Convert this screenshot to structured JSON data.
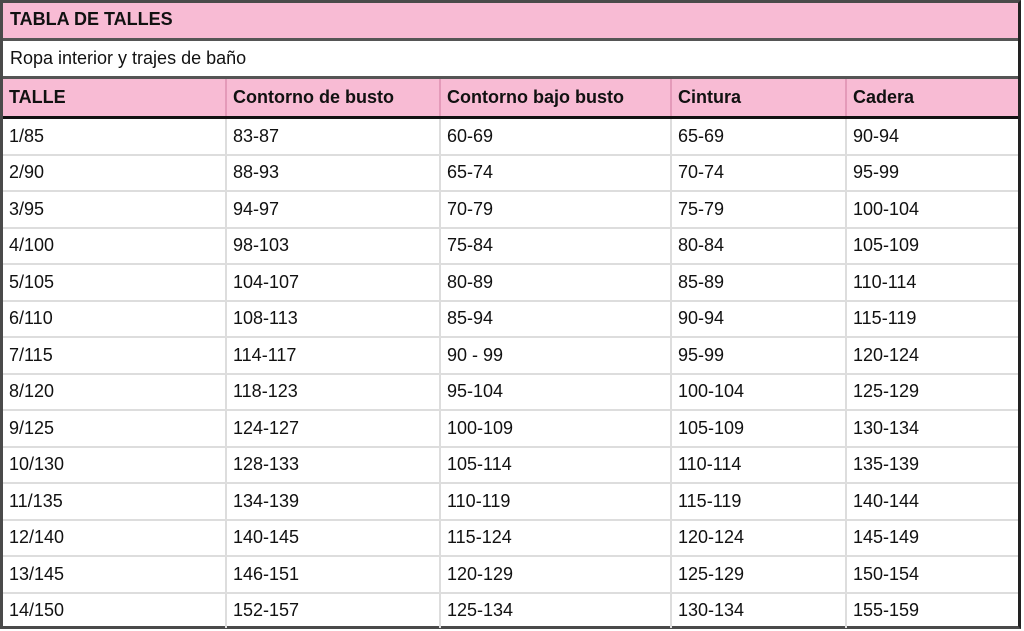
{
  "title": "TABLA DE TALLES",
  "subtitle": "Ropa interior y trajes de baño",
  "colors": {
    "header_bg": "#f8bbd4"
  },
  "headers": [
    "TALLE",
    "Contorno de busto",
    "Contorno bajo busto",
    "Cintura",
    "Cadera"
  ],
  "rows": [
    [
      "1/85",
      "83-87",
      "60-69",
      "65-69",
      "90-94"
    ],
    [
      "2/90",
      "88-93",
      "65-74",
      "70-74",
      "95-99"
    ],
    [
      "3/95",
      "94-97",
      "70-79",
      "75-79",
      "100-104"
    ],
    [
      "4/100",
      "98-103",
      "75-84",
      "80-84",
      "105-109"
    ],
    [
      "5/105",
      "104-107",
      "80-89",
      "85-89",
      "110-114"
    ],
    [
      "6/110",
      "108-113",
      "85-94",
      "90-94",
      "115-119"
    ],
    [
      "7/115",
      "114-117",
      "90 - 99",
      "95-99",
      "120-124"
    ],
    [
      "8/120",
      "118-123",
      "95-104",
      "100-104",
      "125-129"
    ],
    [
      "9/125",
      "124-127",
      "100-109",
      "105-109",
      "130-134"
    ],
    [
      "10/130",
      "128-133",
      "105-114",
      "110-114",
      "135-139"
    ],
    [
      "11/135",
      "134-139",
      "110-119",
      "115-119",
      "140-144"
    ],
    [
      "12/140",
      "140-145",
      "115-124",
      "120-124",
      "145-149"
    ],
    [
      "13/145",
      "146-151",
      "120-129",
      "125-129",
      "150-154"
    ],
    [
      "14/150",
      "152-157",
      "125-134",
      "130-134",
      "155-159"
    ]
  ]
}
